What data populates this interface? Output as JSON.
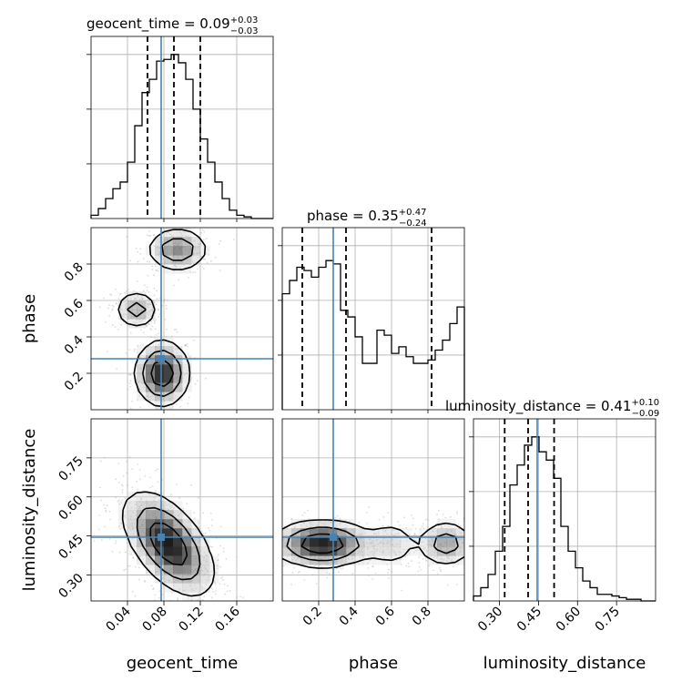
{
  "chart_data": {
    "type": "corner",
    "parameters": [
      "geocent_time",
      "phase",
      "luminosity_distance"
    ],
    "truths": {
      "geocent_time": 0.077,
      "phase": 0.28,
      "luminosity_distance": 0.445
    },
    "colors": {
      "truth": "#4682b4",
      "hist": "#000000",
      "grid": "#b0b0b0"
    },
    "titles": [
      {
        "param": "geocent_time",
        "main": "geocent_time = 0.09",
        "sup": "+0.03",
        "sub": "−0.03"
      },
      {
        "param": "phase",
        "main": "phase = 0.35",
        "sup": "+0.47",
        "sub": "−0.24"
      },
      {
        "param": "luminosity_distance",
        "main": "luminosity_distance = 0.41",
        "sup": "+0.10",
        "sub": "−0.09"
      }
    ],
    "axes": {
      "geocent_time": {
        "range": [
          0.0,
          0.2
        ],
        "ticks": [
          0.04,
          0.08,
          0.12,
          0.16
        ],
        "tick_labels": [
          "0.04",
          "0.08",
          "0.12",
          "0.16"
        ]
      },
      "phase": {
        "range": [
          0.0,
          1.0
        ],
        "ticks": [
          0.2,
          0.4,
          0.6,
          0.8
        ],
        "tick_labels": [
          "0.2",
          "0.4",
          "0.6",
          "0.8"
        ]
      },
      "luminosity_distance": {
        "range": [
          0.2,
          0.9
        ],
        "ticks": [
          0.3,
          0.45,
          0.6,
          0.75
        ],
        "tick_labels": [
          "0.30",
          "0.45",
          "0.60",
          "0.75"
        ]
      }
    },
    "histograms": {
      "geocent_time": {
        "bin_edges": [
          0.0,
          0.008,
          0.016,
          0.024,
          0.032,
          0.04,
          0.048,
          0.056,
          0.064,
          0.072,
          0.08,
          0.088,
          0.096,
          0.104,
          0.112,
          0.12,
          0.128,
          0.136,
          0.144,
          0.152,
          0.16,
          0.168,
          0.176,
          0.184,
          0.192,
          0.2
        ],
        "counts": [
          0.02,
          0.06,
          0.12,
          0.18,
          0.22,
          0.34,
          0.56,
          0.76,
          0.84,
          0.95,
          0.96,
          0.99,
          0.94,
          0.84,
          0.66,
          0.48,
          0.34,
          0.22,
          0.12,
          0.05,
          0.02,
          0.01,
          0.0,
          0.0,
          0.0
        ],
        "quantiles": [
          0.062,
          0.091,
          0.12
        ]
      },
      "phase": {
        "bin_edges": [
          0.0,
          0.04,
          0.08,
          0.12,
          0.16,
          0.2,
          0.24,
          0.28,
          0.32,
          0.36,
          0.4,
          0.44,
          0.48,
          0.52,
          0.56,
          0.6,
          0.64,
          0.68,
          0.72,
          0.76,
          0.8,
          0.84,
          0.88,
          0.92,
          0.96,
          1.0
        ],
        "counts": [
          0.7,
          0.78,
          0.86,
          0.84,
          0.8,
          0.86,
          0.9,
          0.88,
          0.6,
          0.56,
          0.44,
          0.28,
          0.28,
          0.48,
          0.45,
          0.34,
          0.38,
          0.32,
          0.28,
          0.28,
          0.3,
          0.36,
          0.42,
          0.52,
          0.62
        ],
        "quantiles": [
          0.11,
          0.35,
          0.82
        ]
      },
      "luminosity_distance": {
        "bin_edges": [
          0.2,
          0.228,
          0.256,
          0.284,
          0.312,
          0.34,
          0.368,
          0.396,
          0.424,
          0.452,
          0.48,
          0.508,
          0.536,
          0.564,
          0.592,
          0.62,
          0.648,
          0.676,
          0.704,
          0.732,
          0.76,
          0.788,
          0.816,
          0.844,
          0.872,
          0.9
        ],
        "counts": [
          0.03,
          0.08,
          0.16,
          0.3,
          0.45,
          0.7,
          0.82,
          0.94,
          0.99,
          0.9,
          0.85,
          0.74,
          0.45,
          0.3,
          0.2,
          0.12,
          0.08,
          0.04,
          0.04,
          0.03,
          0.02,
          0.01,
          0.01,
          0.0,
          0.0
        ],
        "quantiles": [
          0.32,
          0.41,
          0.51
        ]
      }
    },
    "pairs": [
      {
        "x": "geocent_time",
        "y": "phase",
        "clusters": [
          {
            "mean": [
              0.078,
              0.2
            ],
            "sd": [
              0.015,
              0.09
            ],
            "weight": 0.45
          },
          {
            "mean": [
              0.095,
              0.88
            ],
            "sd": [
              0.017,
              0.06
            ],
            "weight": 0.3
          },
          {
            "mean": [
              0.05,
              0.55
            ],
            "sd": [
              0.012,
              0.05
            ],
            "weight": 0.25
          }
        ],
        "contour_levels": [
          0.39,
          0.86
        ]
      },
      {
        "x": "geocent_time",
        "y": "luminosity_distance",
        "clusters": [
          {
            "mean": [
              0.085,
              0.42
            ],
            "sd": [
              0.025,
              0.1
            ],
            "rho": -0.55,
            "weight": 1.0
          }
        ],
        "contour_levels": [
          0.39,
          0.86
        ]
      },
      {
        "x": "phase",
        "y": "luminosity_distance",
        "clusters": [
          {
            "mean": [
              0.22,
              0.42
            ],
            "sd": [
              0.14,
              0.045
            ],
            "weight": 0.55
          },
          {
            "mean": [
              0.9,
              0.42
            ],
            "sd": [
              0.08,
              0.045
            ],
            "weight": 0.3
          },
          {
            "mean": [
              0.6,
              0.42
            ],
            "sd": [
              0.08,
              0.05
            ],
            "weight": 0.15
          }
        ],
        "contour_levels": [
          0.39,
          0.86
        ]
      }
    ]
  }
}
